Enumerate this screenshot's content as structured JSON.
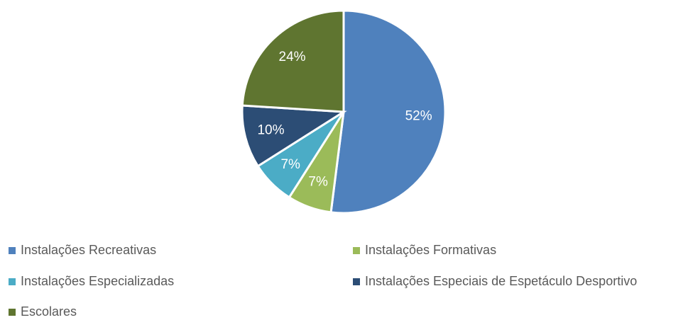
{
  "chart_data": {
    "type": "pie",
    "categories": [
      "Instalações Recreativas",
      "Instalações Formativas",
      "Instalações Especializadas",
      "Instalações Especiais de Espetáculo Desportivo",
      "Escolares"
    ],
    "values": [
      52,
      7,
      7,
      10,
      24
    ],
    "value_labels": [
      "52%",
      "7%",
      "7%",
      "10%",
      "24%"
    ],
    "colors": [
      "#4f81bd",
      "#9bbb59",
      "#4bacc6",
      "#2c4d75",
      "#5f7530"
    ],
    "legend": "bottom"
  }
}
